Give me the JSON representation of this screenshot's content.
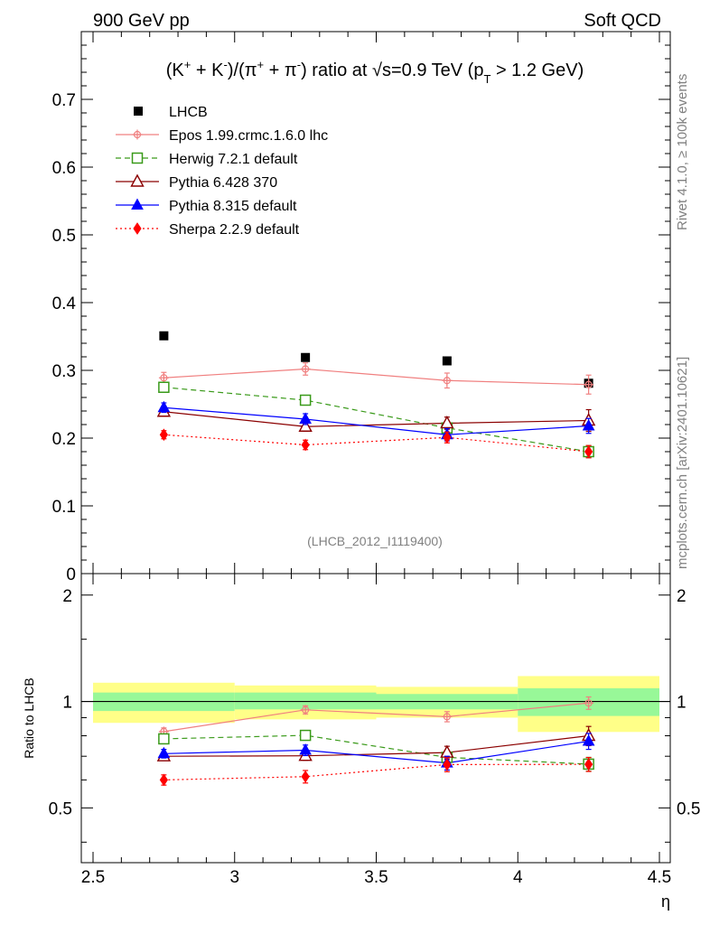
{
  "header": {
    "left": "900 GeV pp",
    "right": "Soft QCD"
  },
  "side_labels": {
    "rivet": "Rivet 4.1.0, ≥ 100k events",
    "mcplots": "mcplots.cern.ch [arXiv:2401.10621]"
  },
  "chart_data": [
    {
      "type": "line",
      "title_parts": {
        "lead": "(K",
        "sup1": "+",
        "mid1": " + K",
        "sup2": "-",
        "mid2": ")/(π",
        "sup3": "+",
        "mid3": " + π",
        "sup4": "-",
        "mid4": ") ratio at √s=0.9 TeV (p",
        "sub": "T",
        "tail": " > 1.2 GeV)"
      },
      "watermark": "(LHCB_2012_I1119400)",
      "ylim": [
        0,
        0.8
      ],
      "yticks": [
        0,
        0.1,
        0.2,
        0.3,
        0.4,
        0.5,
        0.6,
        0.7
      ],
      "ytick_labels": [
        "0",
        "0.1",
        "0.2",
        "0.3",
        "0.4",
        "0.5",
        "0.6",
        "0.7"
      ],
      "xlim": [
        2.5,
        4.5
      ],
      "x": [
        2.75,
        3.25,
        3.75,
        4.25
      ],
      "data": {
        "name": "LHCB",
        "values": [
          0.351,
          0.319,
          0.314,
          0.281
        ]
      },
      "series": [
        {
          "name": "Epos 1.99.crmc.1.6.0 lhc",
          "values": [
            0.289,
            0.302,
            0.285,
            0.279
          ],
          "errors": [
            0.008,
            0.009,
            0.011,
            0.014
          ],
          "color": "#f08080",
          "marker": "cross"
        },
        {
          "name": "Herwig 7.2.1 default",
          "values": [
            0.275,
            0.256,
            0.215,
            0.18
          ],
          "errors": [
            0.006,
            0.007,
            0.008,
            0.009
          ],
          "color": "#3a9a1a",
          "marker": "open-square"
        },
        {
          "name": "Pythia 6.428 370",
          "values": [
            0.239,
            0.217,
            0.222,
            0.226
          ],
          "errors": [
            0.006,
            0.007,
            0.009,
            0.016
          ],
          "color": "#8b0000",
          "marker": "open-triangle"
        },
        {
          "name": "Pythia 8.315 default",
          "values": [
            0.245,
            0.228,
            0.205,
            0.218
          ],
          "errors": [
            0.007,
            0.008,
            0.009,
            0.011
          ],
          "color": "#0000ff",
          "marker": "filled-triangle"
        },
        {
          "name": "Sherpa 2.2.9 default",
          "values": [
            0.205,
            0.19,
            0.201,
            0.18
          ],
          "errors": [
            0.006,
            0.007,
            0.008,
            0.009
          ],
          "color": "#ff0000",
          "marker": "diamond"
        }
      ]
    },
    {
      "type": "line",
      "ylabel": "Ratio to LHCB",
      "xlabel": "η",
      "ylim": [
        0.35,
        2.3
      ],
      "yticks": [
        0.5,
        1,
        2
      ],
      "ytick_labels": [
        "0.5",
        "1",
        "2"
      ],
      "xlim": [
        2.5,
        4.5
      ],
      "xticks": [
        2.5,
        3,
        3.5,
        4,
        4.5
      ],
      "xtick_labels": [
        "2.5",
        "3",
        "3.5",
        "4",
        "4.5"
      ],
      "x": [
        2.75,
        3.25,
        3.75,
        4.25
      ],
      "bins": [
        [
          2.5,
          3.0
        ],
        [
          3.0,
          3.5
        ],
        [
          3.5,
          4.0
        ],
        [
          4.0,
          4.5
        ]
      ],
      "band_inner": [
        [
          0.94,
          1.06
        ],
        [
          0.95,
          1.06
        ],
        [
          0.95,
          1.05
        ],
        [
          0.91,
          1.09
        ]
      ],
      "band_outer": [
        [
          0.87,
          1.13
        ],
        [
          0.89,
          1.11
        ],
        [
          0.9,
          1.1
        ],
        [
          0.82,
          1.18
        ]
      ],
      "series": [
        {
          "name": "Epos 1.99.crmc.1.6.0 lhc",
          "values": [
            0.822,
            0.947,
            0.906,
            0.99
          ],
          "errors": [
            0.02,
            0.025,
            0.03,
            0.04
          ],
          "color": "#f08080",
          "marker": "cross"
        },
        {
          "name": "Herwig 7.2.1 default",
          "values": [
            0.784,
            0.802,
            0.695,
            0.665
          ],
          "errors": [
            0.015,
            0.02,
            0.025,
            0.03
          ],
          "color": "#3a9a1a",
          "marker": "open-square"
        },
        {
          "name": "Pythia 6.428 370",
          "values": [
            0.7,
            0.702,
            0.717,
            0.8
          ],
          "errors": [
            0.015,
            0.02,
            0.03,
            0.05
          ],
          "color": "#8b0000",
          "marker": "open-triangle"
        },
        {
          "name": "Pythia 8.315 default",
          "values": [
            0.712,
            0.728,
            0.67,
            0.772
          ],
          "errors": [
            0.02,
            0.025,
            0.03,
            0.04
          ],
          "color": "#0000ff",
          "marker": "filled-triangle"
        },
        {
          "name": "Sherpa 2.2.9 default",
          "values": [
            0.6,
            0.613,
            0.663,
            0.664
          ],
          "errors": [
            0.02,
            0.025,
            0.03,
            0.03
          ],
          "color": "#ff0000",
          "marker": "diamond"
        }
      ]
    }
  ]
}
